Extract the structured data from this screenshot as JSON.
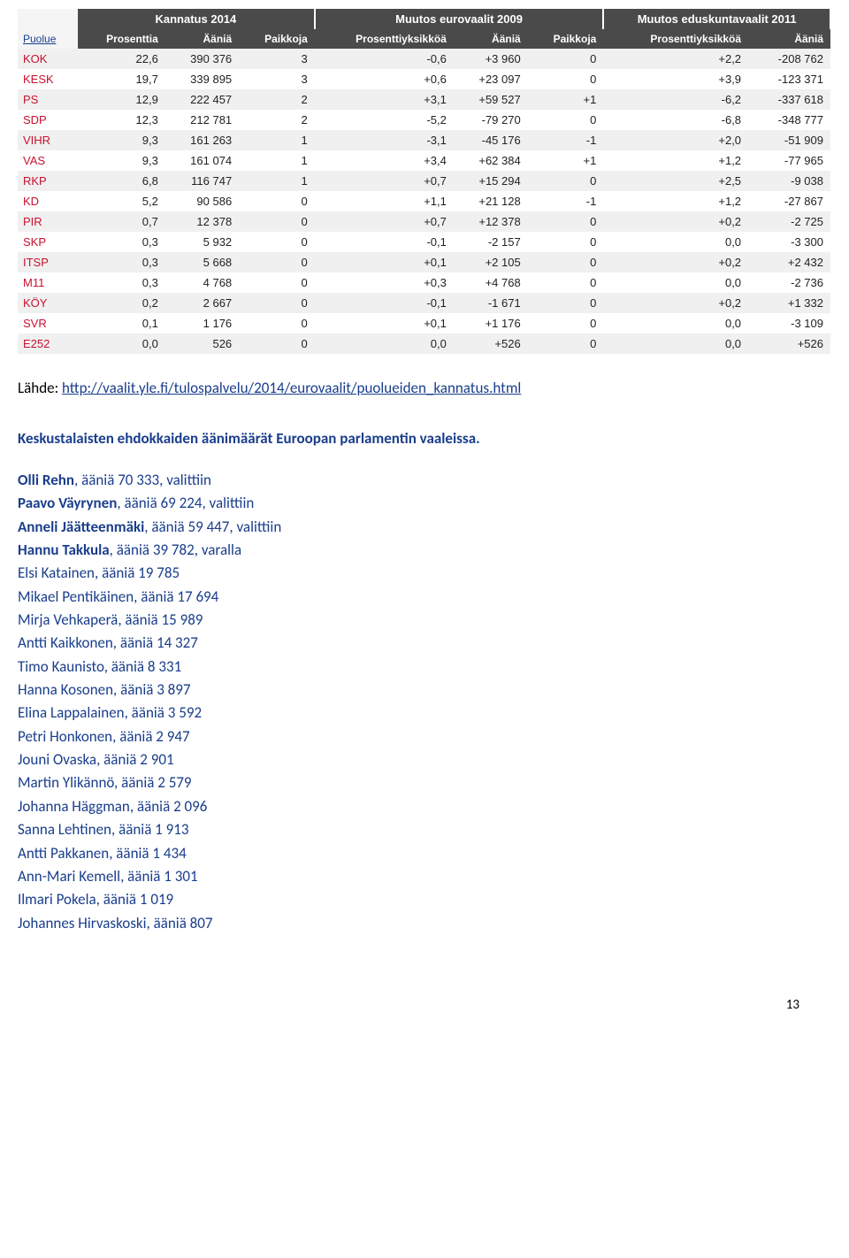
{
  "table": {
    "groupHeaders": [
      "",
      "Kannatus 2014",
      "Muutos eurovaalit 2009",
      "Muutos eduskuntavaalit 2011"
    ],
    "subHeaders": [
      "Puolue",
      "Prosenttia",
      "Ääniä",
      "Paikkoja",
      "Prosenttiyksikköä",
      "Ääniä",
      "Paikkoja",
      "Prosenttiyksikköä",
      "Ääniä"
    ],
    "rows": [
      [
        "KOK",
        "22,6",
        "390 376",
        "3",
        "-0,6",
        "+3 960",
        "0",
        "+2,2",
        "-208 762"
      ],
      [
        "KESK",
        "19,7",
        "339 895",
        "3",
        "+0,6",
        "+23 097",
        "0",
        "+3,9",
        "-123 371"
      ],
      [
        "PS",
        "12,9",
        "222 457",
        "2",
        "+3,1",
        "+59 527",
        "+1",
        "-6,2",
        "-337 618"
      ],
      [
        "SDP",
        "12,3",
        "212 781",
        "2",
        "-5,2",
        "-79 270",
        "0",
        "-6,8",
        "-348 777"
      ],
      [
        "VIHR",
        "9,3",
        "161 263",
        "1",
        "-3,1",
        "-45 176",
        "-1",
        "+2,0",
        "-51 909"
      ],
      [
        "VAS",
        "9,3",
        "161 074",
        "1",
        "+3,4",
        "+62 384",
        "+1",
        "+1,2",
        "-77 965"
      ],
      [
        "RKP",
        "6,8",
        "116 747",
        "1",
        "+0,7",
        "+15 294",
        "0",
        "+2,5",
        "-9 038"
      ],
      [
        "KD",
        "5,2",
        "90 586",
        "0",
        "+1,1",
        "+21 128",
        "-1",
        "+1,2",
        "-27 867"
      ],
      [
        "PIR",
        "0,7",
        "12 378",
        "0",
        "+0,7",
        "+12 378",
        "0",
        "+0,2",
        "-2 725"
      ],
      [
        "SKP",
        "0,3",
        "5 932",
        "0",
        "-0,1",
        "-2 157",
        "0",
        "0,0",
        "-3 300"
      ],
      [
        "ITSP",
        "0,3",
        "5 668",
        "0",
        "+0,1",
        "+2 105",
        "0",
        "+0,2",
        "+2 432"
      ],
      [
        "M11",
        "0,3",
        "4 768",
        "0",
        "+0,3",
        "+4 768",
        "0",
        "0,0",
        "-2 736"
      ],
      [
        "KÖY",
        "0,2",
        "2 667",
        "0",
        "-0,1",
        "-1 671",
        "0",
        "+0,2",
        "+1 332"
      ],
      [
        "SVR",
        "0,1",
        "1 176",
        "0",
        "+0,1",
        "+1 176",
        "0",
        "0,0",
        "-3 109"
      ],
      [
        "E252",
        "0,0",
        "526",
        "0",
        "0,0",
        "+526",
        "0",
        "0,0",
        "+526"
      ]
    ]
  },
  "source": {
    "label": "Lähde: ",
    "url": "http://vaalit.yle.fi/tulospalvelu/2014/eurovaalit/puolueiden_kannatus.html"
  },
  "subtitle": "Keskustalaisten ehdokkaiden äänimäärät Euroopan parlamentin vaaleissa.",
  "candidates": [
    {
      "name": "Olli Rehn",
      "rest": ", ääniä 70 333, valittiin",
      "bold": true
    },
    {
      "name": "Paavo Väyrynen",
      "rest": ", ääniä 69 224, valittiin",
      "bold": true
    },
    {
      "name": "Anneli Jäätteenmäki",
      "rest": ", ääniä 59 447, valittiin",
      "bold": true
    },
    {
      "name": "Hannu Takkula",
      "rest": ", ääniä 39 782, varalla",
      "bold": true
    },
    {
      "name": "Elsi Katainen",
      "rest": ", ääniä 19 785",
      "bold": false
    },
    {
      "name": "Mikael Pentikäinen",
      "rest": ", ääniä 17 694",
      "bold": false
    },
    {
      "name": "Mirja Vehkaperä",
      "rest": ", ääniä 15 989",
      "bold": false
    },
    {
      "name": "Antti Kaikkonen",
      "rest": ", ääniä 14 327",
      "bold": false
    },
    {
      "name": "Timo Kaunisto",
      "rest": ", ääniä 8 331",
      "bold": false
    },
    {
      "name": "Hanna Kosonen",
      "rest": ", ääniä 3 897",
      "bold": false
    },
    {
      "name": "Elina Lappalainen",
      "rest": ", ääniä 3 592",
      "bold": false
    },
    {
      "name": "Petri Honkonen",
      "rest": ", ääniä 2 947",
      "bold": false
    },
    {
      "name": "Jouni Ovaska",
      "rest": ", ääniä 2 901",
      "bold": false
    },
    {
      "name": "Martin Ylikännö",
      "rest": ", ääniä 2 579",
      "bold": false
    },
    {
      "name": "Johanna Häggman",
      "rest": ", ääniä 2 096",
      "bold": false
    },
    {
      "name": "Sanna Lehtinen",
      "rest": ", ääniä 1 913",
      "bold": false
    },
    {
      "name": "Antti Pakkanen",
      "rest": ", ääniä 1 434",
      "bold": false
    },
    {
      "name": "Ann-Mari Kemell",
      "rest": ", ääniä 1 301",
      "bold": false
    },
    {
      "name": "Ilmari Pokela",
      "rest": ", ääniä 1 019",
      "bold": false
    },
    {
      "name": "Johannes Hirvaskoski",
      "rest": ", ääniä 807",
      "bold": false
    }
  ],
  "pageNumber": "13"
}
